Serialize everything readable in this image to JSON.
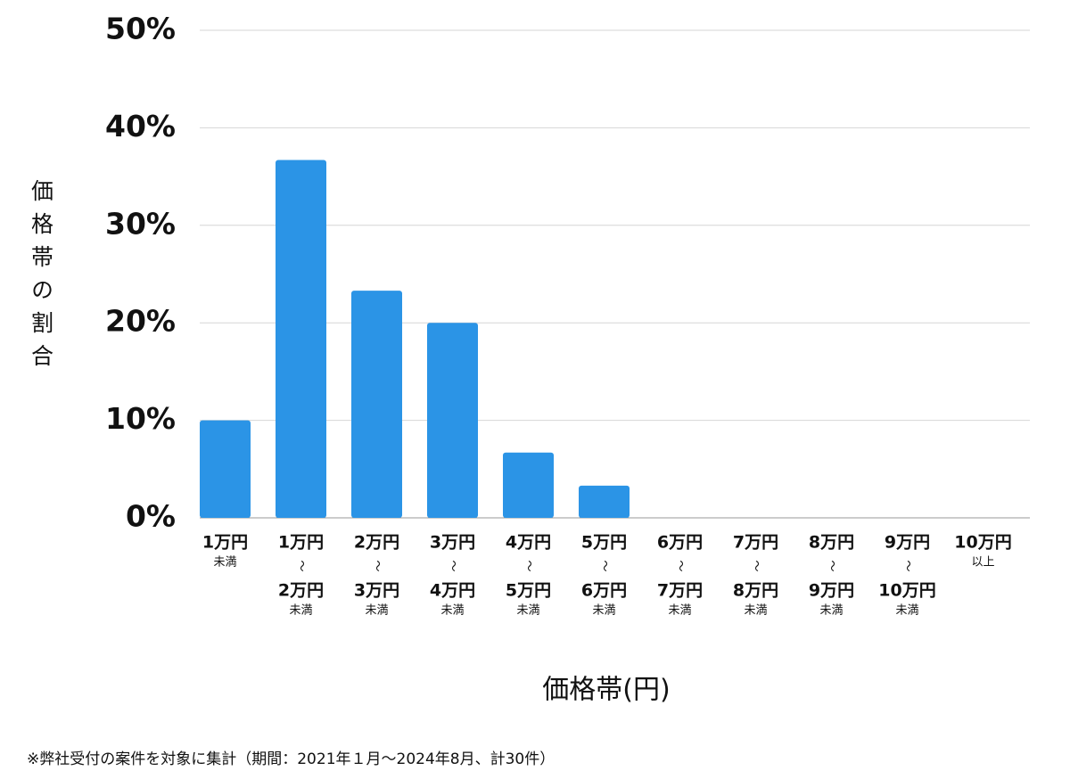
{
  "chart_data": {
    "type": "bar",
    "y_label": "価格帯の割合",
    "x_label": "価格帯(円)",
    "note": "※弊社受付の案件を対象に集計（期間：2021年１月〜2024年8月、計30件）",
    "categories": [
      [
        "1万円",
        "未満"
      ],
      [
        "1万円",
        "〜",
        "2万円",
        "未満"
      ],
      [
        "2万円",
        "〜",
        "3万円",
        "未満"
      ],
      [
        "3万円",
        "〜",
        "4万円",
        "未満"
      ],
      [
        "4万円",
        "〜",
        "5万円",
        "未満"
      ],
      [
        "5万円",
        "〜",
        "6万円",
        "未満"
      ],
      [
        "6万円",
        "〜",
        "7万円",
        "未満"
      ],
      [
        "7万円",
        "〜",
        "8万円",
        "未満"
      ],
      [
        "8万円",
        "〜",
        "9万円",
        "未満"
      ],
      [
        "9万円",
        "〜",
        "10万円",
        "未満"
      ],
      [
        "10万円",
        "以上"
      ]
    ],
    "values": [
      10,
      36.7,
      23.3,
      20,
      6.7,
      3.3,
      0,
      0,
      0,
      0,
      0
    ],
    "color": "#2b94e6",
    "ylim": [
      0,
      50
    ],
    "yticks": [
      {
        "value": 0,
        "label": "0%"
      },
      {
        "value": 10,
        "label": "10%"
      },
      {
        "value": 20,
        "label": "20%"
      },
      {
        "value": 30,
        "label": "30%"
      },
      {
        "value": 40,
        "label": "40%"
      },
      {
        "value": 50,
        "label": "50%"
      }
    ],
    "grid": true
  }
}
